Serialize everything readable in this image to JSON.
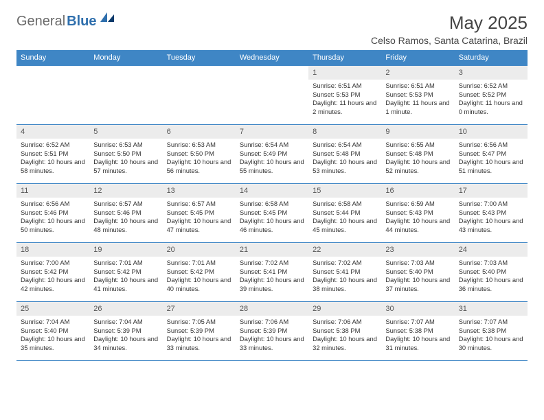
{
  "brand": {
    "part1": "General",
    "part2": "Blue"
  },
  "title": "May 2025",
  "location": "Celso Ramos, Santa Catarina, Brazil",
  "colors": {
    "header_bg": "#3f86c5",
    "header_text": "#ffffff",
    "daynum_bg": "#ececec",
    "border": "#3f86c5",
    "text": "#333333",
    "brand_gray": "#6a6a6a",
    "brand_blue": "#2f6fad"
  },
  "fonts": {
    "base_family": "Arial",
    "title_size": 26,
    "header_size": 11,
    "daynum_size": 11,
    "cell_size": 9.4
  },
  "weekdays": [
    "Sunday",
    "Monday",
    "Tuesday",
    "Wednesday",
    "Thursday",
    "Friday",
    "Saturday"
  ],
  "weeks": [
    {
      "nums": [
        "",
        "",
        "",
        "",
        "1",
        "2",
        "3"
      ],
      "cells": [
        null,
        null,
        null,
        null,
        {
          "sunrise": "6:51 AM",
          "sunset": "5:53 PM",
          "daylight": "11 hours and 2 minutes."
        },
        {
          "sunrise": "6:51 AM",
          "sunset": "5:53 PM",
          "daylight": "11 hours and 1 minute."
        },
        {
          "sunrise": "6:52 AM",
          "sunset": "5:52 PM",
          "daylight": "11 hours and 0 minutes."
        }
      ]
    },
    {
      "nums": [
        "4",
        "5",
        "6",
        "7",
        "8",
        "9",
        "10"
      ],
      "cells": [
        {
          "sunrise": "6:52 AM",
          "sunset": "5:51 PM",
          "daylight": "10 hours and 58 minutes."
        },
        {
          "sunrise": "6:53 AM",
          "sunset": "5:50 PM",
          "daylight": "10 hours and 57 minutes."
        },
        {
          "sunrise": "6:53 AM",
          "sunset": "5:50 PM",
          "daylight": "10 hours and 56 minutes."
        },
        {
          "sunrise": "6:54 AM",
          "sunset": "5:49 PM",
          "daylight": "10 hours and 55 minutes."
        },
        {
          "sunrise": "6:54 AM",
          "sunset": "5:48 PM",
          "daylight": "10 hours and 53 minutes."
        },
        {
          "sunrise": "6:55 AM",
          "sunset": "5:48 PM",
          "daylight": "10 hours and 52 minutes."
        },
        {
          "sunrise": "6:56 AM",
          "sunset": "5:47 PM",
          "daylight": "10 hours and 51 minutes."
        }
      ]
    },
    {
      "nums": [
        "11",
        "12",
        "13",
        "14",
        "15",
        "16",
        "17"
      ],
      "cells": [
        {
          "sunrise": "6:56 AM",
          "sunset": "5:46 PM",
          "daylight": "10 hours and 50 minutes."
        },
        {
          "sunrise": "6:57 AM",
          "sunset": "5:46 PM",
          "daylight": "10 hours and 48 minutes."
        },
        {
          "sunrise": "6:57 AM",
          "sunset": "5:45 PM",
          "daylight": "10 hours and 47 minutes."
        },
        {
          "sunrise": "6:58 AM",
          "sunset": "5:45 PM",
          "daylight": "10 hours and 46 minutes."
        },
        {
          "sunrise": "6:58 AM",
          "sunset": "5:44 PM",
          "daylight": "10 hours and 45 minutes."
        },
        {
          "sunrise": "6:59 AM",
          "sunset": "5:43 PM",
          "daylight": "10 hours and 44 minutes."
        },
        {
          "sunrise": "7:00 AM",
          "sunset": "5:43 PM",
          "daylight": "10 hours and 43 minutes."
        }
      ]
    },
    {
      "nums": [
        "18",
        "19",
        "20",
        "21",
        "22",
        "23",
        "24"
      ],
      "cells": [
        {
          "sunrise": "7:00 AM",
          "sunset": "5:42 PM",
          "daylight": "10 hours and 42 minutes."
        },
        {
          "sunrise": "7:01 AM",
          "sunset": "5:42 PM",
          "daylight": "10 hours and 41 minutes."
        },
        {
          "sunrise": "7:01 AM",
          "sunset": "5:42 PM",
          "daylight": "10 hours and 40 minutes."
        },
        {
          "sunrise": "7:02 AM",
          "sunset": "5:41 PM",
          "daylight": "10 hours and 39 minutes."
        },
        {
          "sunrise": "7:02 AM",
          "sunset": "5:41 PM",
          "daylight": "10 hours and 38 minutes."
        },
        {
          "sunrise": "7:03 AM",
          "sunset": "5:40 PM",
          "daylight": "10 hours and 37 minutes."
        },
        {
          "sunrise": "7:03 AM",
          "sunset": "5:40 PM",
          "daylight": "10 hours and 36 minutes."
        }
      ]
    },
    {
      "nums": [
        "25",
        "26",
        "27",
        "28",
        "29",
        "30",
        "31"
      ],
      "cells": [
        {
          "sunrise": "7:04 AM",
          "sunset": "5:40 PM",
          "daylight": "10 hours and 35 minutes."
        },
        {
          "sunrise": "7:04 AM",
          "sunset": "5:39 PM",
          "daylight": "10 hours and 34 minutes."
        },
        {
          "sunrise": "7:05 AM",
          "sunset": "5:39 PM",
          "daylight": "10 hours and 33 minutes."
        },
        {
          "sunrise": "7:06 AM",
          "sunset": "5:39 PM",
          "daylight": "10 hours and 33 minutes."
        },
        {
          "sunrise": "7:06 AM",
          "sunset": "5:38 PM",
          "daylight": "10 hours and 32 minutes."
        },
        {
          "sunrise": "7:07 AM",
          "sunset": "5:38 PM",
          "daylight": "10 hours and 31 minutes."
        },
        {
          "sunrise": "7:07 AM",
          "sunset": "5:38 PM",
          "daylight": "10 hours and 30 minutes."
        }
      ]
    }
  ],
  "labels": {
    "sunrise": "Sunrise: ",
    "sunset": "Sunset: ",
    "daylight": "Daylight: "
  }
}
